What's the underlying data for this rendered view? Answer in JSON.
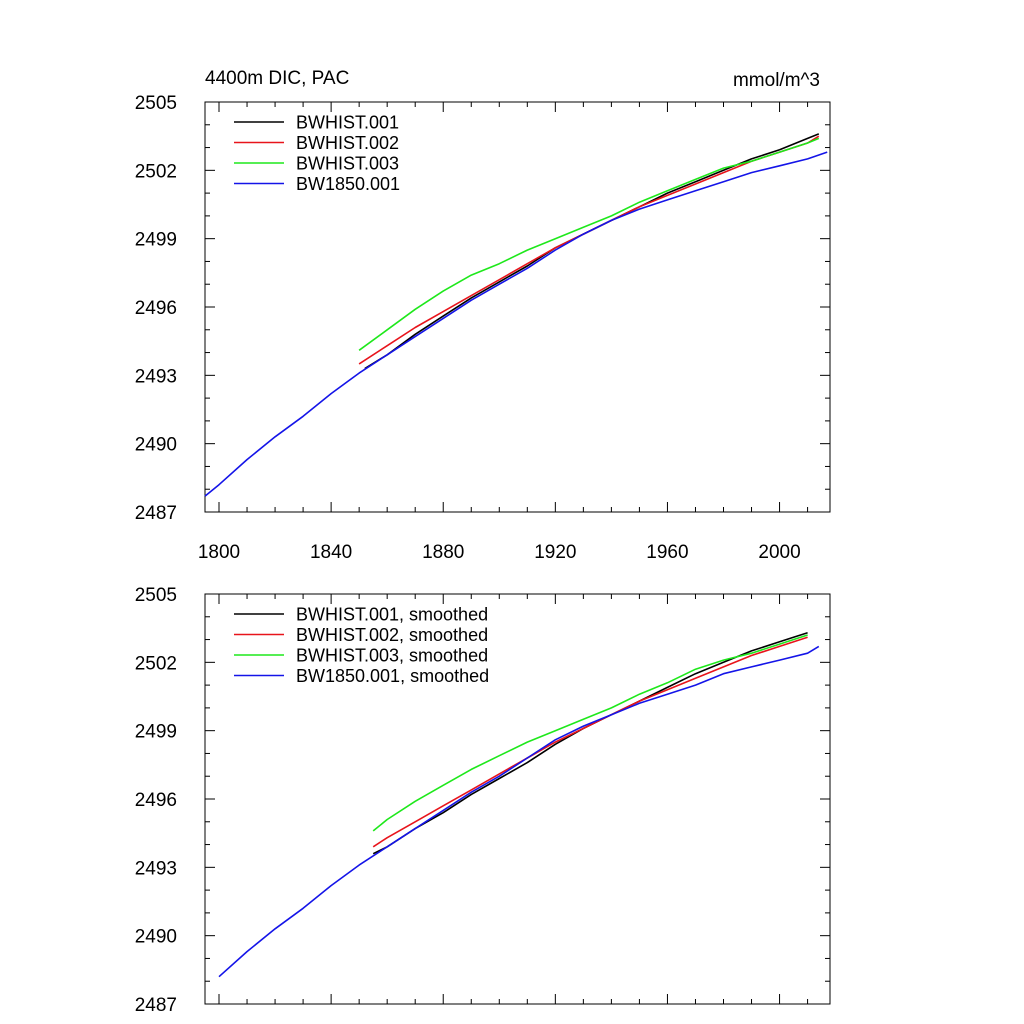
{
  "colors": {
    "BWHIST.001": "#000000",
    "BWHIST.002": "#e8141b",
    "BWHIST.003": "#1ee81b",
    "BW1850.001": "#1414e8"
  },
  "chart_data": [
    {
      "type": "line",
      "title": "4400m DIC, PAC",
      "units": "mmol/m^3",
      "xlabel": "",
      "ylabel": "",
      "xlim": [
        1795,
        2018
      ],
      "ylim": [
        2487,
        2505
      ],
      "xticks": [
        1800,
        1840,
        1880,
        1920,
        1960,
        2000
      ],
      "yticks": [
        2487,
        2490,
        2493,
        2496,
        2499,
        2502,
        2505
      ],
      "show_xtick_labels": true,
      "legend_position": "top-left",
      "grid": false,
      "series": [
        {
          "name": "BWHIST.001",
          "color_key": "BWHIST.001",
          "x": [
            1852,
            1860,
            1870,
            1880,
            1890,
            1900,
            1910,
            1920,
            1930,
            1940,
            1950,
            1960,
            1970,
            1980,
            1990,
            2000,
            2010,
            2014
          ],
          "y": [
            2493.3,
            2493.9,
            2494.8,
            2495.6,
            2496.4,
            2497.1,
            2497.8,
            2498.6,
            2499.2,
            2499.8,
            2500.4,
            2501.0,
            2501.5,
            2502.0,
            2502.5,
            2502.9,
            2503.4,
            2503.6
          ]
        },
        {
          "name": "BWHIST.002",
          "color_key": "BWHIST.002",
          "x": [
            1850,
            1860,
            1870,
            1880,
            1890,
            1900,
            1910,
            1920,
            1930,
            1940,
            1950,
            1960,
            1970,
            1980,
            1990,
            2000,
            2010,
            2014
          ],
          "y": [
            2493.5,
            2494.3,
            2495.1,
            2495.8,
            2496.5,
            2497.2,
            2497.9,
            2498.6,
            2499.2,
            2499.8,
            2500.4,
            2500.9,
            2501.4,
            2501.9,
            2502.4,
            2502.8,
            2503.2,
            2503.5
          ]
        },
        {
          "name": "BWHIST.003",
          "color_key": "BWHIST.003",
          "x": [
            1850,
            1860,
            1870,
            1880,
            1890,
            1900,
            1910,
            1920,
            1930,
            1940,
            1950,
            1960,
            1970,
            1980,
            1990,
            2000,
            2010,
            2014
          ],
          "y": [
            2494.1,
            2495.0,
            2495.9,
            2496.7,
            2497.4,
            2497.9,
            2498.5,
            2499.0,
            2499.5,
            2500.0,
            2500.6,
            2501.1,
            2501.6,
            2502.1,
            2502.4,
            2502.8,
            2503.2,
            2503.4
          ]
        },
        {
          "name": "BW1850.001",
          "color_key": "BW1850.001",
          "x": [
            1795,
            1800,
            1810,
            1820,
            1830,
            1840,
            1850,
            1860,
            1870,
            1880,
            1890,
            1900,
            1910,
            1920,
            1930,
            1940,
            1950,
            1960,
            1970,
            1980,
            1990,
            2000,
            2010,
            2017
          ],
          "y": [
            2487.7,
            2488.2,
            2489.3,
            2490.3,
            2491.2,
            2492.2,
            2493.1,
            2493.9,
            2494.7,
            2495.5,
            2496.3,
            2497.0,
            2497.7,
            2498.5,
            2499.2,
            2499.8,
            2500.3,
            2500.7,
            2501.1,
            2501.5,
            2501.9,
            2502.2,
            2502.5,
            2502.8
          ]
        }
      ]
    },
    {
      "type": "line",
      "title": "",
      "units": "",
      "xlabel": "",
      "ylabel": "",
      "xlim": [
        1795,
        2018
      ],
      "ylim": [
        2487,
        2505
      ],
      "xticks": [
        1800,
        1840,
        1880,
        1920,
        1960,
        2000
      ],
      "yticks": [
        2487,
        2490,
        2493,
        2496,
        2499,
        2502,
        2505
      ],
      "show_xtick_labels": false,
      "legend_position": "top-left",
      "grid": false,
      "series": [
        {
          "name": "BWHIST.001, smoothed",
          "color_key": "BWHIST.001",
          "x": [
            1855,
            1860,
            1870,
            1880,
            1890,
            1900,
            1910,
            1920,
            1930,
            1940,
            1950,
            1960,
            1970,
            1980,
            1990,
            2000,
            2010
          ],
          "y": [
            2493.6,
            2493.9,
            2494.7,
            2495.4,
            2496.2,
            2496.9,
            2497.6,
            2498.4,
            2499.1,
            2499.7,
            2500.3,
            2500.9,
            2501.5,
            2502.0,
            2502.5,
            2502.9,
            2503.3
          ]
        },
        {
          "name": "BWHIST.002, smoothed",
          "color_key": "BWHIST.002",
          "x": [
            1855,
            1860,
            1870,
            1880,
            1890,
            1900,
            1910,
            1920,
            1930,
            1940,
            1950,
            1960,
            1970,
            1980,
            1990,
            2000,
            2010
          ],
          "y": [
            2493.9,
            2494.3,
            2495.0,
            2495.7,
            2496.4,
            2497.1,
            2497.8,
            2498.5,
            2499.1,
            2499.7,
            2500.3,
            2500.8,
            2501.3,
            2501.8,
            2502.3,
            2502.7,
            2503.1
          ]
        },
        {
          "name": "BWHIST.003, smoothed",
          "color_key": "BWHIST.003",
          "x": [
            1855,
            1860,
            1870,
            1880,
            1890,
            1900,
            1910,
            1920,
            1930,
            1940,
            1950,
            1960,
            1970,
            1980,
            1990,
            2000,
            2010
          ],
          "y": [
            2494.6,
            2495.1,
            2495.9,
            2496.6,
            2497.3,
            2497.9,
            2498.5,
            2499.0,
            2499.5,
            2500.0,
            2500.6,
            2501.1,
            2501.7,
            2502.1,
            2502.4,
            2502.8,
            2503.2
          ]
        },
        {
          "name": "BW1850.001, smoothed",
          "color_key": "BW1850.001",
          "x": [
            1800,
            1810,
            1820,
            1830,
            1840,
            1850,
            1860,
            1870,
            1880,
            1890,
            1900,
            1910,
            1920,
            1930,
            1940,
            1950,
            1960,
            1970,
            1980,
            1990,
            2000,
            2010,
            2014
          ],
          "y": [
            2488.2,
            2489.3,
            2490.3,
            2491.2,
            2492.2,
            2493.1,
            2493.9,
            2494.7,
            2495.5,
            2496.3,
            2497.0,
            2497.8,
            2498.6,
            2499.2,
            2499.7,
            2500.2,
            2500.6,
            2501.0,
            2501.5,
            2501.8,
            2502.1,
            2502.4,
            2502.7
          ]
        }
      ]
    }
  ]
}
